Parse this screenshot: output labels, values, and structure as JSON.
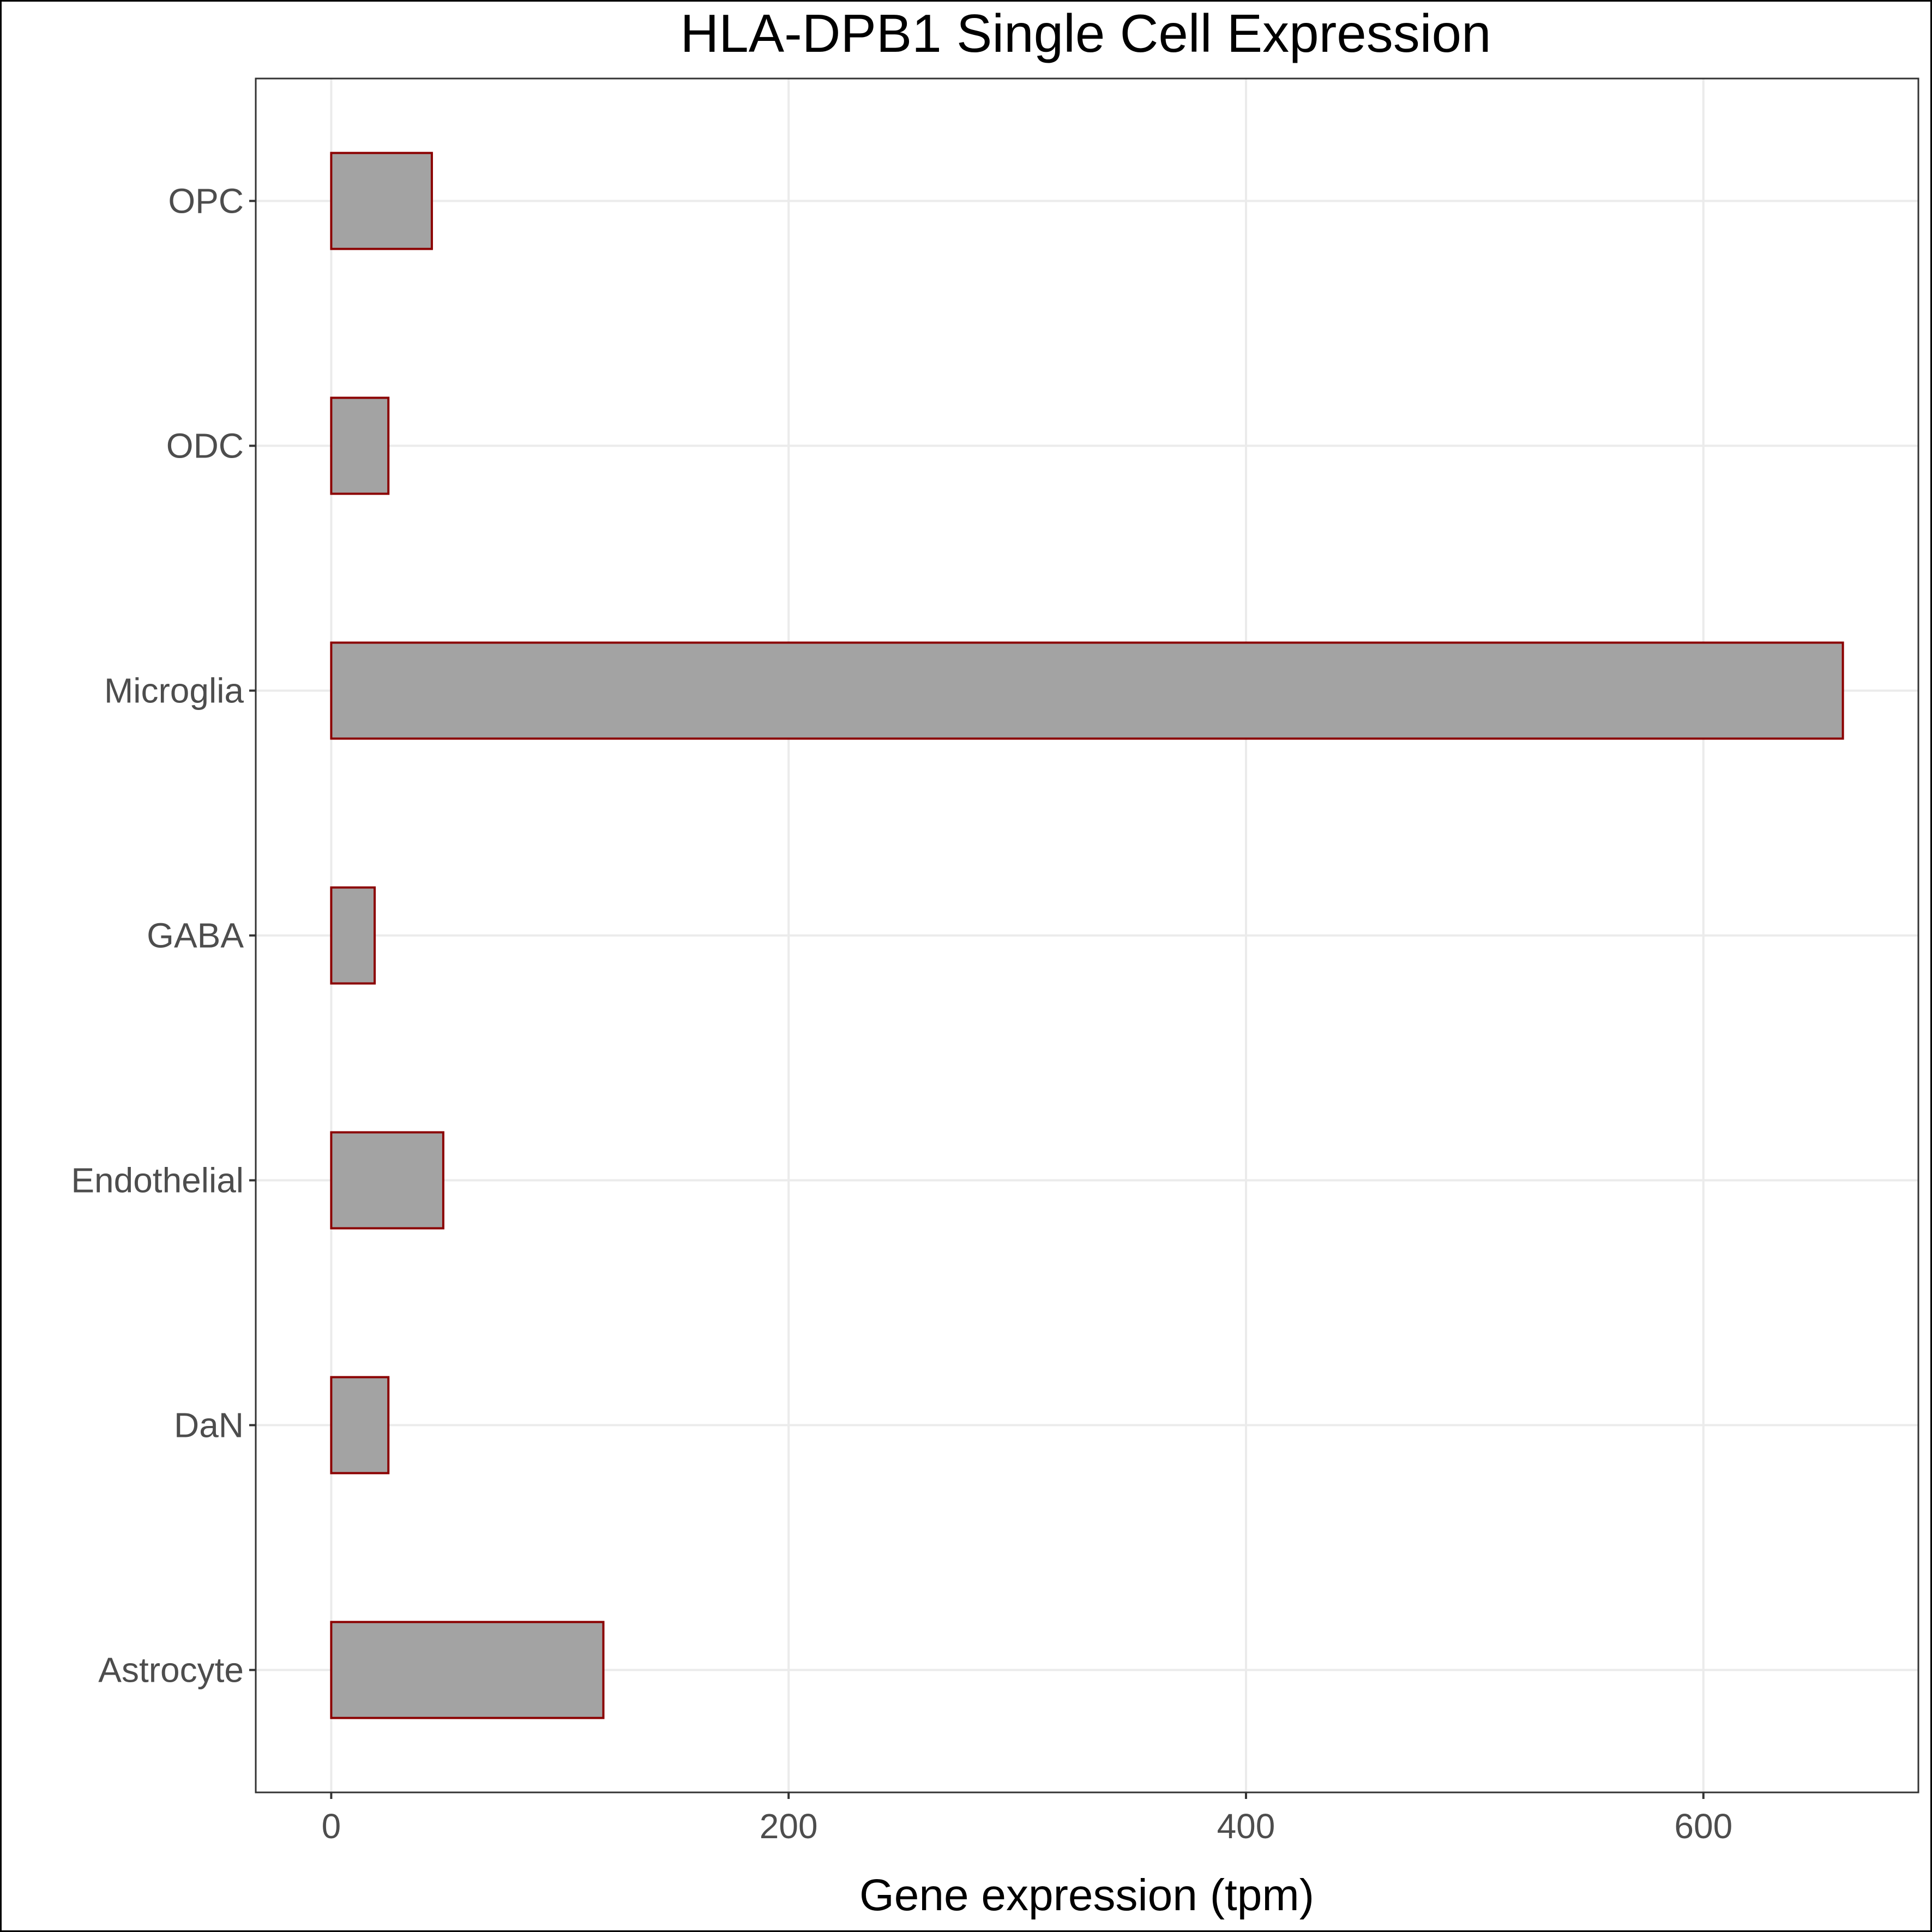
{
  "chart_data": {
    "type": "bar",
    "orientation": "horizontal",
    "title": "HLA-DPB1 Single Cell Expression",
    "xlabel": "Gene expression (tpm)",
    "ylabel": "",
    "categories": [
      "Astrocyte",
      "DaN",
      "Endothelial",
      "GABA",
      "Microglia",
      "ODC",
      "OPC"
    ],
    "values": [
      119,
      25,
      49,
      19,
      661,
      25,
      44
    ],
    "xlim": [
      -33,
      694
    ],
    "xticks": [
      0,
      200,
      400,
      600
    ],
    "xtick_labels": [
      "0",
      "200",
      "400",
      "600"
    ],
    "grid": true,
    "legend": "none",
    "colors": {
      "bar_fill": "#a3a3a3",
      "bar_outline": "#8b0000",
      "grid": "#ebebeb",
      "tick_text": "#4d4d4d"
    }
  }
}
